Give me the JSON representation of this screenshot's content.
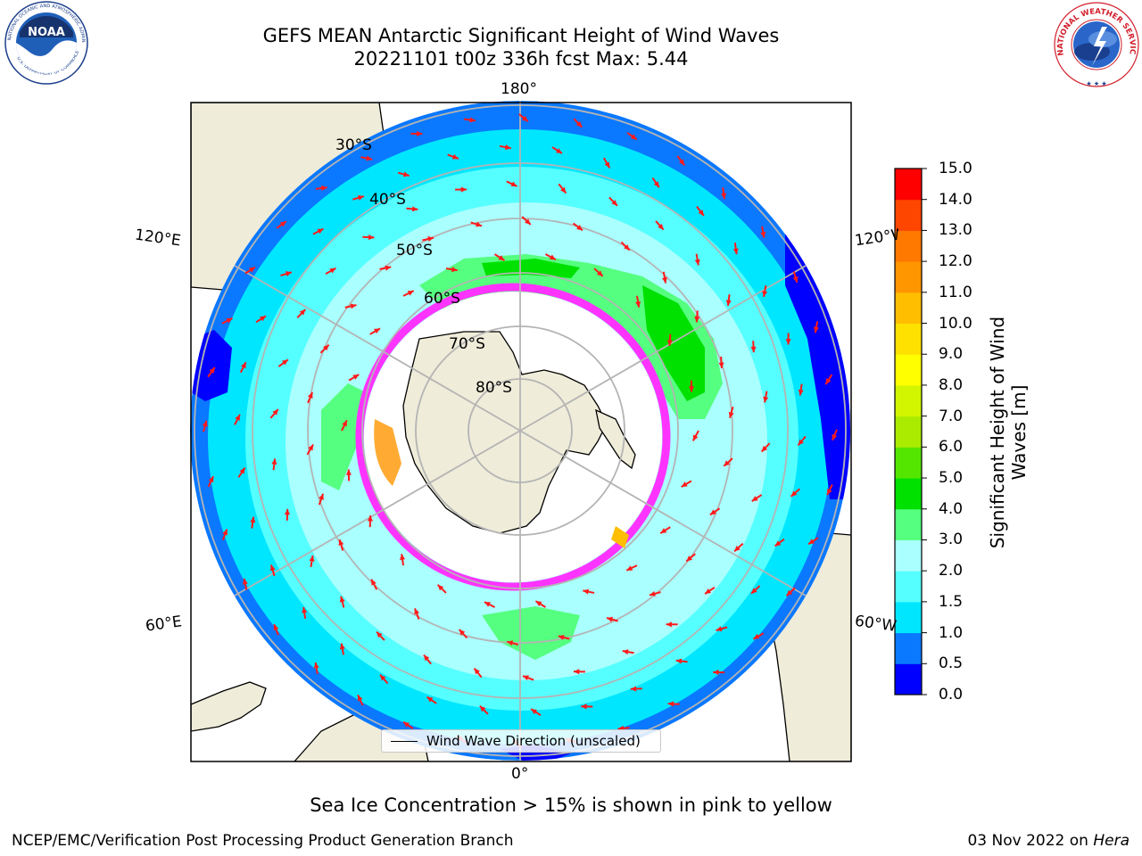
{
  "header": {
    "title_line1": "GEFS MEAN Antarctic Significant Height of Wind Waves",
    "title_line2": "20221101 t00z 336h fcst   Max: 5.44"
  },
  "map": {
    "projection": "south-polar-stereographic",
    "longitude_labels": {
      "top": "180°",
      "bottom": "0°",
      "upper_left": "120°E",
      "upper_right": "120°W",
      "lower_left": "60°E",
      "lower_right": "60°W"
    },
    "latitude_labels": [
      "30°S",
      "40°S",
      "50°S",
      "60°S",
      "70°S",
      "80°S"
    ],
    "colors": {
      "land": "#efecd9",
      "coastline": "#000000",
      "graticule": "#b4b4b4",
      "arrow": "#ff1a1a",
      "ice_low": "#ff33ff",
      "ice_high": "#ffe000"
    },
    "legend_label": "Wind Wave Direction (unscaled)"
  },
  "colorbar": {
    "label_line1": "Significant Height of Wind",
    "label_line2": "Waves [m]",
    "ticks": [
      "0.0",
      "0.5",
      "1.0",
      "1.5",
      "2.0",
      "3.0",
      "4.0",
      "5.0",
      "6.0",
      "7.0",
      "8.0",
      "9.0",
      "10.0",
      "11.0",
      "12.0",
      "13.0",
      "14.0",
      "15.0"
    ],
    "colors": [
      "#0000ff",
      "#0a78ff",
      "#00e6ff",
      "#55ffff",
      "#aaffff",
      "#55ff7f",
      "#00e100",
      "#55e600",
      "#aaeb00",
      "#d2f500",
      "#ffff00",
      "#ffe100",
      "#ffbe00",
      "#ff9600",
      "#ff7800",
      "#ff4600",
      "#ff0000"
    ]
  },
  "notes": {
    "sea_ice": "Sea Ice Concentration > 15% is shown in pink to yellow"
  },
  "footer": {
    "left": "NCEP/EMC/Verification Post Processing Product Generation Branch",
    "right_date": "03 Nov 2022 on ",
    "right_machine": "Hera"
  },
  "logos": {
    "noaa": "NOAA",
    "noaa_ring": "NATIONAL OCEANIC AND ATMOSPHERIC ADMINISTRATION",
    "noaa_ring_bottom": "U.S. DEPARTMENT OF COMMERCE",
    "nws": "NATIONAL WEATHER SERVICE"
  }
}
